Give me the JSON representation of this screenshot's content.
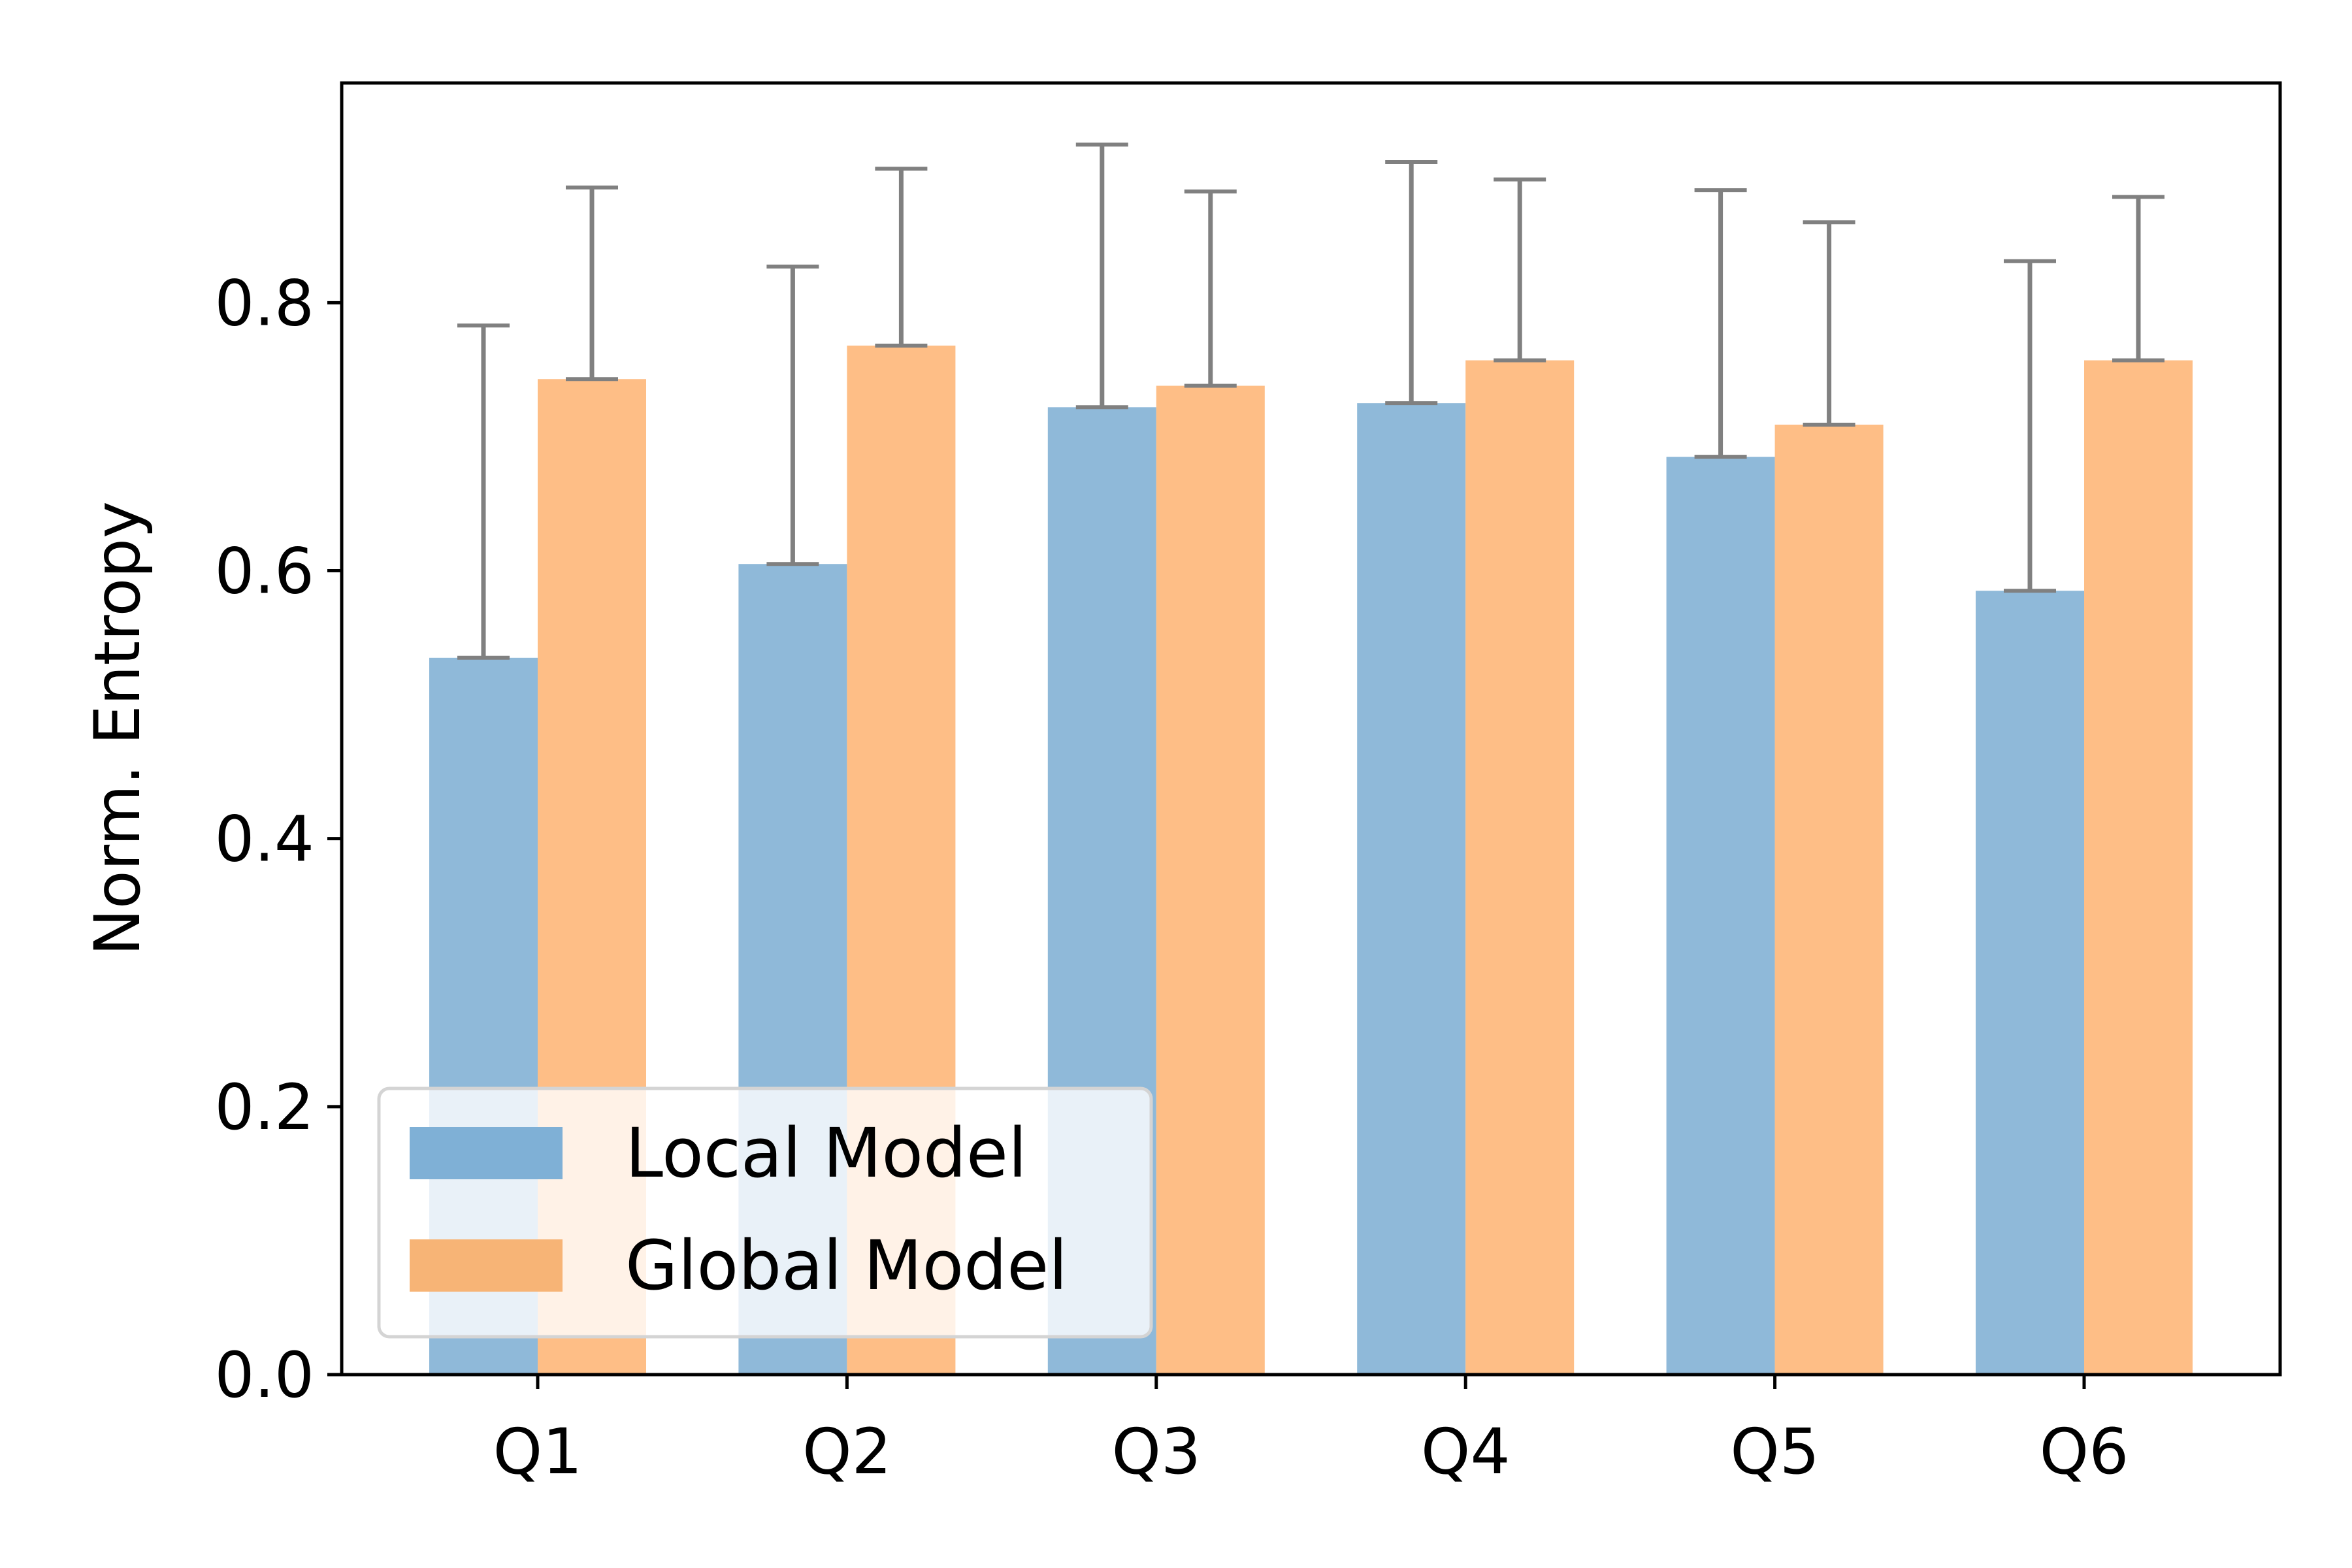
{
  "chart_data": {
    "type": "bar",
    "title": "",
    "xlabel": "",
    "ylabel": "Norm. Entropy",
    "categories": [
      "Q1",
      "Q2",
      "Q3",
      "Q4",
      "Q5",
      "Q6"
    ],
    "ylim": [
      0.0,
      0.964
    ],
    "yticks": [
      0.0,
      0.2,
      0.4,
      0.6,
      0.8
    ],
    "ytick_labels": [
      "0.0",
      "0.2",
      "0.4",
      "0.6",
      "0.8"
    ],
    "grid": false,
    "legend_position": "lower-left",
    "series": [
      {
        "name": "Local Model",
        "color": "#8fb9d9",
        "legend_color": "#7fb0d6",
        "values": [
          0.535,
          0.605,
          0.722,
          0.725,
          0.685,
          0.585
        ],
        "error_upper": [
          0.248,
          0.222,
          0.196,
          0.18,
          0.199,
          0.246
        ]
      },
      {
        "name": "Global Model",
        "color": "#febe86",
        "legend_color": "#f7b476",
        "values": [
          0.743,
          0.768,
          0.738,
          0.757,
          0.709,
          0.757
        ],
        "error_upper": [
          0.143,
          0.132,
          0.145,
          0.135,
          0.151,
          0.122
        ]
      }
    ],
    "error_bar_color": "#808080"
  }
}
